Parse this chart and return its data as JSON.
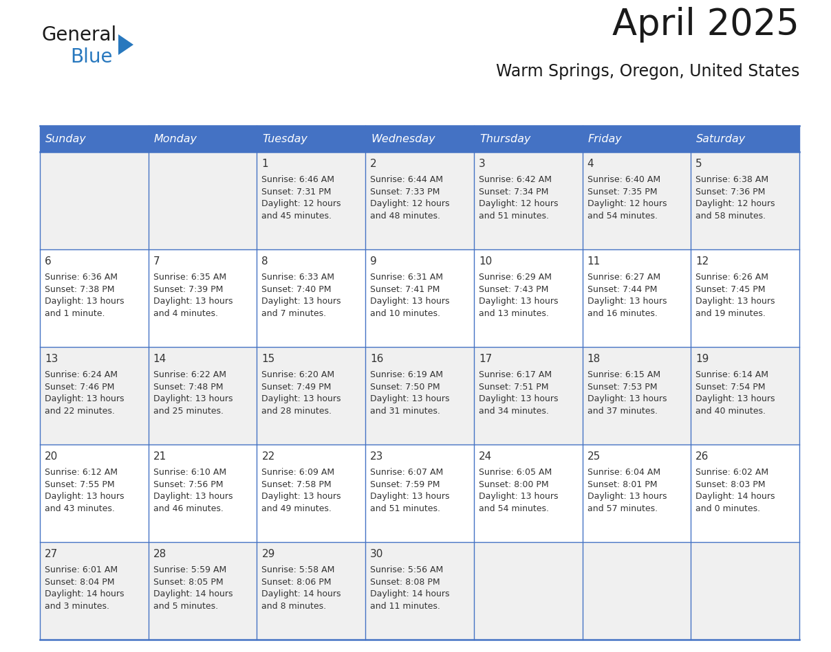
{
  "title": "April 2025",
  "subtitle": "Warm Springs, Oregon, United States",
  "header_bg_color": "#4472C4",
  "header_text_color": "#FFFFFF",
  "cell_bg_color_row0": "#F0F0F0",
  "cell_bg_color_row1": "#FFFFFF",
  "cell_bg_color_row2": "#F0F0F0",
  "cell_bg_color_row3": "#FFFFFF",
  "cell_bg_color_row4": "#F0F0F0",
  "grid_line_color": "#4472C4",
  "text_color": "#333333",
  "day_headers": [
    "Sunday",
    "Monday",
    "Tuesday",
    "Wednesday",
    "Thursday",
    "Friday",
    "Saturday"
  ],
  "days_data": [
    {
      "day": 1,
      "col": 2,
      "row": 0,
      "sunrise": "6:46 AM",
      "sunset": "7:31 PM",
      "daylight": "12 hours",
      "daylight2": "and 45 minutes."
    },
    {
      "day": 2,
      "col": 3,
      "row": 0,
      "sunrise": "6:44 AM",
      "sunset": "7:33 PM",
      "daylight": "12 hours",
      "daylight2": "and 48 minutes."
    },
    {
      "day": 3,
      "col": 4,
      "row": 0,
      "sunrise": "6:42 AM",
      "sunset": "7:34 PM",
      "daylight": "12 hours",
      "daylight2": "and 51 minutes."
    },
    {
      "day": 4,
      "col": 5,
      "row": 0,
      "sunrise": "6:40 AM",
      "sunset": "7:35 PM",
      "daylight": "12 hours",
      "daylight2": "and 54 minutes."
    },
    {
      "day": 5,
      "col": 6,
      "row": 0,
      "sunrise": "6:38 AM",
      "sunset": "7:36 PM",
      "daylight": "12 hours",
      "daylight2": "and 58 minutes."
    },
    {
      "day": 6,
      "col": 0,
      "row": 1,
      "sunrise": "6:36 AM",
      "sunset": "7:38 PM",
      "daylight": "13 hours",
      "daylight2": "and 1 minute."
    },
    {
      "day": 7,
      "col": 1,
      "row": 1,
      "sunrise": "6:35 AM",
      "sunset": "7:39 PM",
      "daylight": "13 hours",
      "daylight2": "and 4 minutes."
    },
    {
      "day": 8,
      "col": 2,
      "row": 1,
      "sunrise": "6:33 AM",
      "sunset": "7:40 PM",
      "daylight": "13 hours",
      "daylight2": "and 7 minutes."
    },
    {
      "day": 9,
      "col": 3,
      "row": 1,
      "sunrise": "6:31 AM",
      "sunset": "7:41 PM",
      "daylight": "13 hours",
      "daylight2": "and 10 minutes."
    },
    {
      "day": 10,
      "col": 4,
      "row": 1,
      "sunrise": "6:29 AM",
      "sunset": "7:43 PM",
      "daylight": "13 hours",
      "daylight2": "and 13 minutes."
    },
    {
      "day": 11,
      "col": 5,
      "row": 1,
      "sunrise": "6:27 AM",
      "sunset": "7:44 PM",
      "daylight": "13 hours",
      "daylight2": "and 16 minutes."
    },
    {
      "day": 12,
      "col": 6,
      "row": 1,
      "sunrise": "6:26 AM",
      "sunset": "7:45 PM",
      "daylight": "13 hours",
      "daylight2": "and 19 minutes."
    },
    {
      "day": 13,
      "col": 0,
      "row": 2,
      "sunrise": "6:24 AM",
      "sunset": "7:46 PM",
      "daylight": "13 hours",
      "daylight2": "and 22 minutes."
    },
    {
      "day": 14,
      "col": 1,
      "row": 2,
      "sunrise": "6:22 AM",
      "sunset": "7:48 PM",
      "daylight": "13 hours",
      "daylight2": "and 25 minutes."
    },
    {
      "day": 15,
      "col": 2,
      "row": 2,
      "sunrise": "6:20 AM",
      "sunset": "7:49 PM",
      "daylight": "13 hours",
      "daylight2": "and 28 minutes."
    },
    {
      "day": 16,
      "col": 3,
      "row": 2,
      "sunrise": "6:19 AM",
      "sunset": "7:50 PM",
      "daylight": "13 hours",
      "daylight2": "and 31 minutes."
    },
    {
      "day": 17,
      "col": 4,
      "row": 2,
      "sunrise": "6:17 AM",
      "sunset": "7:51 PM",
      "daylight": "13 hours",
      "daylight2": "and 34 minutes."
    },
    {
      "day": 18,
      "col": 5,
      "row": 2,
      "sunrise": "6:15 AM",
      "sunset": "7:53 PM",
      "daylight": "13 hours",
      "daylight2": "and 37 minutes."
    },
    {
      "day": 19,
      "col": 6,
      "row": 2,
      "sunrise": "6:14 AM",
      "sunset": "7:54 PM",
      "daylight": "13 hours",
      "daylight2": "and 40 minutes."
    },
    {
      "day": 20,
      "col": 0,
      "row": 3,
      "sunrise": "6:12 AM",
      "sunset": "7:55 PM",
      "daylight": "13 hours",
      "daylight2": "and 43 minutes."
    },
    {
      "day": 21,
      "col": 1,
      "row": 3,
      "sunrise": "6:10 AM",
      "sunset": "7:56 PM",
      "daylight": "13 hours",
      "daylight2": "and 46 minutes."
    },
    {
      "day": 22,
      "col": 2,
      "row": 3,
      "sunrise": "6:09 AM",
      "sunset": "7:58 PM",
      "daylight": "13 hours",
      "daylight2": "and 49 minutes."
    },
    {
      "day": 23,
      "col": 3,
      "row": 3,
      "sunrise": "6:07 AM",
      "sunset": "7:59 PM",
      "daylight": "13 hours",
      "daylight2": "and 51 minutes."
    },
    {
      "day": 24,
      "col": 4,
      "row": 3,
      "sunrise": "6:05 AM",
      "sunset": "8:00 PM",
      "daylight": "13 hours",
      "daylight2": "and 54 minutes."
    },
    {
      "day": 25,
      "col": 5,
      "row": 3,
      "sunrise": "6:04 AM",
      "sunset": "8:01 PM",
      "daylight": "13 hours",
      "daylight2": "and 57 minutes."
    },
    {
      "day": 26,
      "col": 6,
      "row": 3,
      "sunrise": "6:02 AM",
      "sunset": "8:03 PM",
      "daylight": "14 hours",
      "daylight2": "and 0 minutes."
    },
    {
      "day": 27,
      "col": 0,
      "row": 4,
      "sunrise": "6:01 AM",
      "sunset": "8:04 PM",
      "daylight": "14 hours",
      "daylight2": "and 3 minutes."
    },
    {
      "day": 28,
      "col": 1,
      "row": 4,
      "sunrise": "5:59 AM",
      "sunset": "8:05 PM",
      "daylight": "14 hours",
      "daylight2": "and 5 minutes."
    },
    {
      "day": 29,
      "col": 2,
      "row": 4,
      "sunrise": "5:58 AM",
      "sunset": "8:06 PM",
      "daylight": "14 hours",
      "daylight2": "and 8 minutes."
    },
    {
      "day": 30,
      "col": 3,
      "row": 4,
      "sunrise": "5:56 AM",
      "sunset": "8:08 PM",
      "daylight": "14 hours",
      "daylight2": "and 11 minutes."
    }
  ],
  "logo_text1": "General",
  "logo_text2": "Blue",
  "logo_text1_color": "#1a1a1a",
  "logo_text2_color": "#2878BE",
  "logo_triangle_color": "#2878BE",
  "title_color": "#1a1a1a",
  "subtitle_color": "#1a1a1a"
}
